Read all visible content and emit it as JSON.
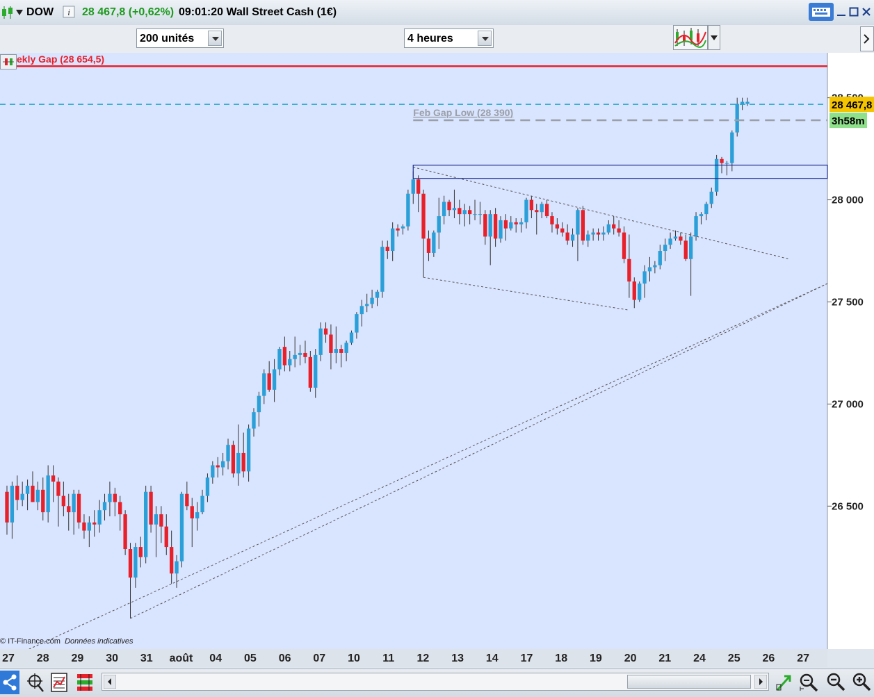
{
  "header": {
    "symbol": "DOW",
    "price_change": "28 467,8 (+0,62%)",
    "time_title": "09:01:20 Wall Street Cash (1€)"
  },
  "toolbar": {
    "units_value": "200 unités",
    "period_value": "4 heures"
  },
  "colors": {
    "up": "#2a9fd8",
    "down": "#e8202a",
    "background": "#d9e4ff",
    "gap_line": "#e8202a",
    "price_line": "#1fa7c9",
    "price_tag": "#f5c400",
    "timer_tag": "#8fe08a"
  },
  "chart_data": {
    "type": "candlestick",
    "symbol": "DOW",
    "ylim": [
      25800,
      28720
    ],
    "yticks": [
      {
        "value": 26500,
        "label": "26 500"
      },
      {
        "value": 27000,
        "label": "27 000"
      },
      {
        "value": 27500,
        "label": "27 500"
      },
      {
        "value": 28000,
        "label": "28 000"
      },
      {
        "value": 28500,
        "label": "28 500"
      }
    ],
    "xticks": [
      "27",
      "28",
      "29",
      "30",
      "31",
      "août",
      "04",
      "05",
      "06",
      "07",
      "10",
      "11",
      "12",
      "13",
      "14",
      "17",
      "18",
      "19",
      "20",
      "21",
      "24",
      "25",
      "26",
      "27"
    ],
    "annotations": {
      "weekly_gap": {
        "label": "ekly Gap (28 654,5)",
        "value": 28654.5
      },
      "feb_gap_low": {
        "label": "Feb Gap Low (28 390)",
        "value": 28390
      },
      "last_price": {
        "label": "28 467,8",
        "value": 28467.8
      },
      "timer": "3h58m"
    },
    "zone": {
      "high": 28170,
      "low": 28105
    },
    "candles": [
      [
        26570,
        26600,
        26360,
        26420
      ],
      [
        26420,
        26620,
        26340,
        26600
      ],
      [
        26600,
        26650,
        26480,
        26530
      ],
      [
        26530,
        26620,
        26500,
        26560
      ],
      [
        26560,
        26630,
        26480,
        26600
      ],
      [
        26600,
        26670,
        26520,
        26520
      ],
      [
        26520,
        26620,
        26480,
        26580
      ],
      [
        26580,
        26640,
        26430,
        26470
      ],
      [
        26470,
        26700,
        26420,
        26650
      ],
      [
        26650,
        26700,
        26520,
        26620
      ],
      [
        26620,
        26640,
        26400,
        26550
      ],
      [
        26550,
        26620,
        26450,
        26500
      ],
      [
        26500,
        26560,
        26380,
        26470
      ],
      [
        26470,
        26580,
        26360,
        26560
      ],
      [
        26560,
        26580,
        26390,
        26420
      ],
      [
        26420,
        26460,
        26340,
        26380
      ],
      [
        26380,
        26450,
        26300,
        26420
      ],
      [
        26420,
        26480,
        26350,
        26410
      ],
      [
        26410,
        26530,
        26370,
        26480
      ],
      [
        26480,
        26560,
        26430,
        26520
      ],
      [
        26520,
        26620,
        26450,
        26560
      ],
      [
        26560,
        26590,
        26450,
        26520
      ],
      [
        26520,
        26550,
        26380,
        26460
      ],
      [
        26460,
        26480,
        26260,
        26290
      ],
      [
        26290,
        26320,
        25950,
        26150
      ],
      [
        26150,
        26320,
        26100,
        26300
      ],
      [
        26300,
        26350,
        26200,
        26250
      ],
      [
        26250,
        26600,
        26220,
        26570
      ],
      [
        26570,
        26600,
        26370,
        26410
      ],
      [
        26410,
        26500,
        26250,
        26460
      ],
      [
        26460,
        26500,
        26320,
        26400
      ],
      [
        26400,
        26460,
        26260,
        26300
      ],
      [
        26300,
        26380,
        26120,
        26170
      ],
      [
        26170,
        26260,
        26100,
        26230
      ],
      [
        26230,
        26570,
        26200,
        26560
      ],
      [
        26560,
        26620,
        26480,
        26500
      ],
      [
        26500,
        26540,
        26300,
        26440
      ],
      [
        26440,
        26520,
        26380,
        26470
      ],
      [
        26470,
        26580,
        26460,
        26550
      ],
      [
        26550,
        26660,
        26520,
        26640
      ],
      [
        26640,
        26720,
        26610,
        26700
      ],
      [
        26700,
        26740,
        26640,
        26690
      ],
      [
        26690,
        26760,
        26650,
        26720
      ],
      [
        26720,
        26830,
        26680,
        26800
      ],
      [
        26800,
        26820,
        26640,
        26660
      ],
      [
        26660,
        26900,
        26600,
        26760
      ],
      [
        26760,
        26860,
        26640,
        26670
      ],
      [
        26670,
        26900,
        26620,
        26880
      ],
      [
        26880,
        26980,
        26840,
        26960
      ],
      [
        26960,
        27060,
        26890,
        27040
      ],
      [
        27040,
        27170,
        27000,
        27150
      ],
      [
        27150,
        27210,
        27060,
        27070
      ],
      [
        27070,
        27220,
        27010,
        27170
      ],
      [
        27170,
        27280,
        27140,
        27270
      ],
      [
        27280,
        27330,
        27160,
        27190
      ],
      [
        27190,
        27260,
        27160,
        27220
      ],
      [
        27220,
        27330,
        27180,
        27240
      ],
      [
        27240,
        27290,
        27190,
        27250
      ],
      [
        27250,
        27310,
        27200,
        27230
      ],
      [
        27230,
        27260,
        27060,
        27080
      ],
      [
        27080,
        27270,
        27030,
        27240
      ],
      [
        27240,
        27400,
        27210,
        27370
      ],
      [
        27370,
        27400,
        27300,
        27340
      ],
      [
        27340,
        27390,
        27170,
        27250
      ],
      [
        27250,
        27380,
        27200,
        27270
      ],
      [
        27270,
        27290,
        27180,
        27250
      ],
      [
        27250,
        27310,
        27210,
        27300
      ],
      [
        27300,
        27360,
        27290,
        27350
      ],
      [
        27350,
        27450,
        27320,
        27440
      ],
      [
        27440,
        27510,
        27380,
        27480
      ],
      [
        27480,
        27540,
        27450,
        27490
      ],
      [
        27490,
        27560,
        27470,
        27520
      ],
      [
        27520,
        27560,
        27480,
        27550
      ],
      [
        27550,
        27800,
        27520,
        27770
      ],
      [
        27770,
        27800,
        27710,
        27750
      ],
      [
        27750,
        27890,
        27700,
        27860
      ],
      [
        27860,
        27880,
        27820,
        27850
      ],
      [
        27860,
        27880,
        27830,
        27870
      ],
      [
        27870,
        28050,
        27850,
        28030
      ],
      [
        28030,
        28140,
        27980,
        28100
      ],
      [
        28100,
        28120,
        27940,
        28030
      ],
      [
        28030,
        28050,
        27620,
        27810
      ],
      [
        27810,
        27850,
        27700,
        27740
      ],
      [
        27740,
        27850,
        27720,
        27840
      ],
      [
        27840,
        28010,
        27760,
        27920
      ],
      [
        27920,
        28020,
        27880,
        27990
      ],
      [
        27990,
        28000,
        27920,
        27950
      ],
      [
        27950,
        28050,
        27910,
        27960
      ],
      [
        27960,
        28000,
        27880,
        27930
      ],
      [
        27930,
        27980,
        27870,
        27950
      ],
      [
        27950,
        27970,
        27880,
        27930
      ],
      [
        27930,
        28000,
        27900,
        27930
      ],
      [
        27930,
        27990,
        27880,
        27930
      ],
      [
        27930,
        27950,
        27780,
        27820
      ],
      [
        27820,
        27950,
        27680,
        27930
      ],
      [
        27930,
        27960,
        27770,
        27810
      ],
      [
        27810,
        27920,
        27790,
        27900
      ],
      [
        27900,
        27930,
        27800,
        27860
      ],
      [
        27860,
        27920,
        27850,
        27890
      ],
      [
        27890,
        27910,
        27840,
        27880
      ],
      [
        27880,
        27910,
        27840,
        27890
      ],
      [
        27890,
        28010,
        27860,
        28000
      ],
      [
        28000,
        28020,
        27910,
        27950
      ],
      [
        27950,
        27980,
        27830,
        27940
      ],
      [
        27940,
        27990,
        27910,
        27980
      ],
      [
        27980,
        28000,
        27910,
        27920
      ],
      [
        27920,
        27940,
        27840,
        27880
      ],
      [
        27880,
        27910,
        27830,
        27860
      ],
      [
        27860,
        27890,
        27820,
        27840
      ],
      [
        27840,
        27880,
        27780,
        27800
      ],
      [
        27800,
        27860,
        27770,
        27830
      ],
      [
        27830,
        27960,
        27700,
        27950
      ],
      [
        27950,
        27970,
        27780,
        27800
      ],
      [
        27800,
        27850,
        27770,
        27830
      ],
      [
        27830,
        27860,
        27800,
        27840
      ],
      [
        27840,
        27860,
        27800,
        27830
      ],
      [
        27830,
        27870,
        27800,
        27840
      ],
      [
        27840,
        27900,
        27830,
        27880
      ],
      [
        27880,
        27920,
        27830,
        27860
      ],
      [
        27860,
        27900,
        27820,
        27840
      ],
      [
        27840,
        27870,
        27690,
        27710
      ],
      [
        27710,
        27830,
        27520,
        27600
      ],
      [
        27600,
        27620,
        27470,
        27510
      ],
      [
        27510,
        27600,
        27500,
        27590
      ],
      [
        27590,
        27680,
        27520,
        27650
      ],
      [
        27650,
        27720,
        27600,
        27670
      ],
      [
        27670,
        27700,
        27640,
        27680
      ],
      [
        27680,
        27780,
        27660,
        27750
      ],
      [
        27750,
        27810,
        27700,
        27780
      ],
      [
        27780,
        27840,
        27760,
        27810
      ],
      [
        27810,
        27850,
        27800,
        27820
      ],
      [
        27820,
        27840,
        27780,
        27800
      ],
      [
        27800,
        27830,
        27700,
        27710
      ],
      [
        27710,
        27840,
        27530,
        27820
      ],
      [
        27820,
        27940,
        27800,
        27920
      ],
      [
        27920,
        27940,
        27880,
        27930
      ],
      [
        27930,
        27990,
        27900,
        27980
      ],
      [
        27980,
        28060,
        27960,
        28040
      ],
      [
        28040,
        28220,
        28020,
        28200
      ],
      [
        28200,
        28210,
        28130,
        28180
      ],
      [
        28180,
        28190,
        28120,
        28180
      ],
      [
        28180,
        28340,
        28140,
        28330
      ],
      [
        28330,
        28500,
        28310,
        28470
      ],
      [
        28470,
        28500,
        28440,
        28480
      ],
      [
        28470,
        28500,
        28460,
        28480
      ]
    ]
  }
}
